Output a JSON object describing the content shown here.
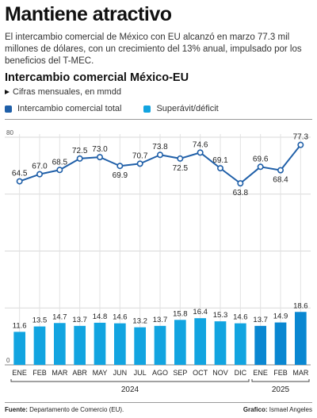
{
  "headline": "Mantiene atractivo",
  "dek": "El intercambio comercial de México con EU alcanzó en marzo 77.3 mil millones de dólares, con un crecimiento del 13% anual, impulsado por los beneficios del T-MEC.",
  "footer": {
    "source_label": "Fuente:",
    "source_text": "Departamento de Comercio (EU).",
    "credit_label": "Grafico:",
    "credit_text": "Ismael Angeles"
  },
  "chart_data": {
    "type": "bar",
    "title": "Intercambio comercial México-EU",
    "subtitle": "Cifras mensuales, en mmdd",
    "categories": [
      "ENE",
      "FEB",
      "MAR",
      "ABR",
      "MAY",
      "JUN",
      "JUL",
      "AGO",
      "SEP",
      "OCT",
      "NOV",
      "DIC",
      "ENE",
      "FEB",
      "MAR"
    ],
    "years": [
      {
        "label": "2024",
        "months": 12
      },
      {
        "label": "2025",
        "months": 3
      }
    ],
    "series": [
      {
        "name": "Intercambio comercial total",
        "type": "line",
        "color": "#1f5fa8",
        "values": [
          64.5,
          67.0,
          68.5,
          72.5,
          73.0,
          69.9,
          70.7,
          73.8,
          72.5,
          74.6,
          69.1,
          63.8,
          69.6,
          68.4,
          77.3
        ]
      },
      {
        "name": "Superávit/déficit",
        "type": "bar",
        "color_2024": "#12a4e0",
        "color_2025": "#0a87d1",
        "values": [
          11.6,
          13.5,
          14.7,
          13.7,
          14.8,
          14.6,
          13.2,
          13.7,
          15.8,
          16.4,
          15.3,
          14.6,
          13.7,
          14.9,
          18.6
        ]
      }
    ],
    "ylim": [
      0,
      80
    ],
    "yticks": [
      0,
      80
    ],
    "grid": true,
    "legend": "top-left"
  }
}
